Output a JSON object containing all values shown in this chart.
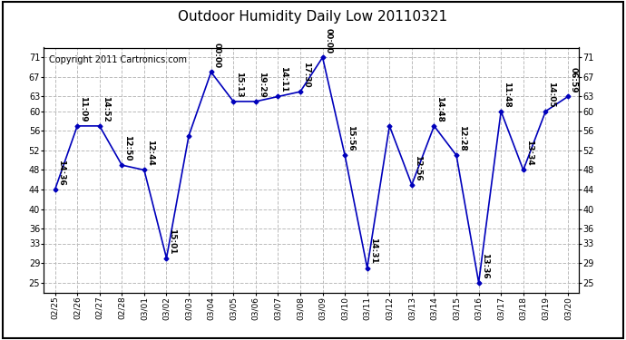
{
  "title": "Outdoor Humidity Daily Low 20110321",
  "copyright": "Copyright 2011 Cartronics.com",
  "dates": [
    "02/25",
    "02/26",
    "02/27",
    "02/28",
    "03/01",
    "03/02",
    "03/03",
    "03/04",
    "03/05",
    "03/06",
    "03/07",
    "03/08",
    "03/09",
    "03/10",
    "03/11",
    "03/12",
    "03/13",
    "03/14",
    "03/15",
    "03/16",
    "03/17",
    "03/18",
    "03/19",
    "03/20"
  ],
  "values": [
    44,
    57,
    57,
    49,
    48,
    30,
    55,
    68,
    62,
    62,
    63,
    64,
    71,
    51,
    28,
    57,
    45,
    57,
    51,
    25,
    60,
    48,
    60,
    63
  ],
  "labels": [
    "14:36",
    "11:09",
    "14:52",
    "12:50",
    "12:44",
    "15:01",
    "",
    "00:00",
    "15:13",
    "19:29",
    "14:11",
    "17:30",
    "00:00",
    "15:56",
    "14:31",
    "",
    "12:56",
    "14:48",
    "12:28",
    "13:36",
    "11:48",
    "13:34",
    "14:05",
    "06:59"
  ],
  "line_color": "#0000bb",
  "marker_color": "#0000bb",
  "bg_color": "#ffffff",
  "grid_color": "#bbbbbb",
  "yticks": [
    25,
    29,
    33,
    36,
    40,
    44,
    48,
    52,
    56,
    60,
    63,
    67,
    71
  ],
  "ylim": [
    23,
    73
  ],
  "title_fontsize": 11,
  "label_fontsize": 6.5,
  "copyright_fontsize": 7
}
